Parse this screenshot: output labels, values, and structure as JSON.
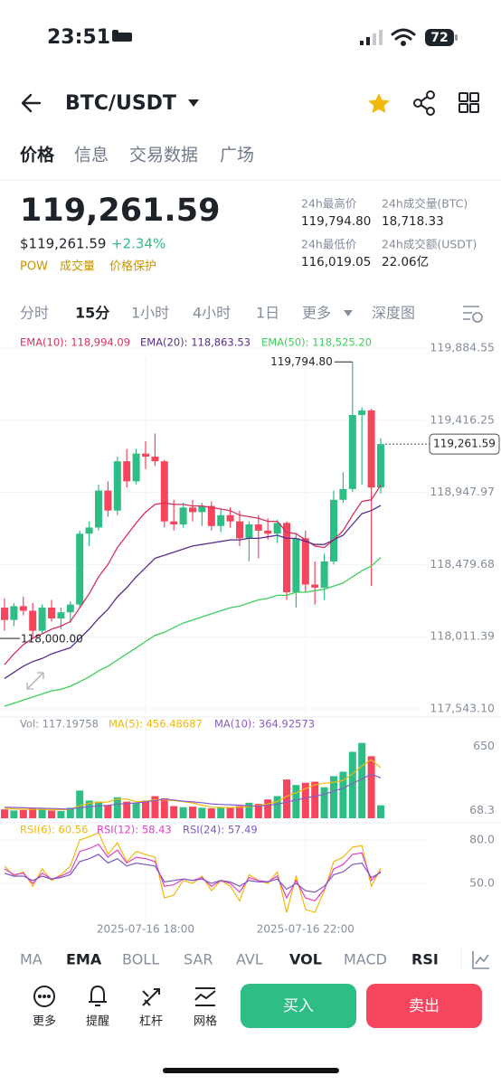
{
  "status_bar": {
    "time": "23:51",
    "battery": "72"
  },
  "header": {
    "pair": "BTC/USDT"
  },
  "tabs": [
    "价格",
    "信息",
    "交易数据",
    "广场"
  ],
  "ticker": {
    "last": "119,261.59",
    "usd": "$119,261.59",
    "change": "+2.34%",
    "tags": [
      "POW",
      "成交量",
      "价格保护"
    ],
    "stats": [
      {
        "label": "24h最高价",
        "value": "119,794.80"
      },
      {
        "label": "24h成交量(BTC)",
        "value": "18,718.33"
      },
      {
        "label": "24h最低价",
        "value": "116,019.05"
      },
      {
        "label": "24h成交额(USDT)",
        "value": "22.06亿"
      }
    ]
  },
  "intervals": [
    "分时",
    "15分",
    "1小时",
    "4小时",
    "1日",
    "更多",
    "深度图"
  ],
  "chart_data": [
    {
      "type": "candlestick",
      "categories": [
        null,
        null,
        null,
        null,
        null,
        null,
        null,
        null,
        null,
        null,
        null,
        null,
        null,
        null,
        null,
        "2025-07-16 18:00",
        null,
        null,
        null,
        null,
        null,
        null,
        null,
        null,
        null,
        null,
        null,
        null,
        null,
        null,
        null,
        null,
        "2025-07-16 22:00",
        null,
        null,
        null,
        null,
        null,
        null,
        null,
        null
      ],
      "open": [
        118200,
        118120,
        118210,
        118180,
        118050,
        118200,
        118130,
        118170,
        118220,
        118680,
        118720,
        118960,
        118830,
        119150,
        119020,
        119200,
        119180,
        119150,
        118760,
        118740,
        118850,
        118820,
        118860,
        118730,
        118800,
        118760,
        118650,
        118740,
        118700,
        118680,
        118750,
        118300,
        118650,
        118350,
        118330,
        118500,
        118900,
        118970,
        119450,
        119480,
        118980
      ],
      "high": [
        118260,
        118230,
        118270,
        118230,
        118220,
        118250,
        118200,
        118240,
        118700,
        118760,
        119000,
        119020,
        119180,
        119230,
        119230,
        119280,
        119330,
        119160,
        118900,
        118880,
        118900,
        118880,
        118890,
        118840,
        118850,
        118830,
        118760,
        118800,
        118780,
        118770,
        118760,
        118680,
        118700,
        118500,
        118550,
        118960,
        119080,
        119794.8,
        119500,
        119490,
        119300
      ],
      "low": [
        118050,
        118080,
        118150,
        118000.0,
        118030,
        118110,
        118060,
        118100,
        118200,
        118600,
        118700,
        118790,
        118800,
        118980,
        119000,
        119100,
        119120,
        118720,
        118700,
        118720,
        118760,
        118730,
        118700,
        118690,
        118720,
        118600,
        118500,
        118520,
        118640,
        118620,
        118250,
        118200,
        118300,
        118220,
        118250,
        118480,
        118880,
        118950,
        119000,
        118340,
        118940
      ],
      "close": [
        118120,
        118210,
        118180,
        118050,
        118200,
        118130,
        118170,
        118220,
        118680,
        118720,
        118960,
        118830,
        119150,
        119020,
        119200,
        119180,
        119150,
        118760,
        118740,
        118850,
        118820,
        118860,
        118730,
        118800,
        118760,
        118650,
        118740,
        118700,
        118680,
        118750,
        118300,
        118650,
        118350,
        118330,
        118500,
        118900,
        118970,
        119450,
        119480,
        118980,
        119261.59
      ],
      "up_color": "#2ebd85",
      "down_color": "#f6465d",
      "ylim": [
        117543.1,
        119884.55
      ],
      "yticks": [
        {
          "value": 119884.55,
          "label": "119,884.55"
        },
        {
          "value": 119416.25,
          "label": "119,416.25"
        },
        {
          "value": 118947.97,
          "label": "118,947.97"
        },
        {
          "value": 118479.68,
          "label": "118,479.68"
        },
        {
          "value": 118011.39,
          "label": "118,011.39"
        },
        {
          "value": 117543.1,
          "label": "117,543.10"
        }
      ],
      "grid": true,
      "last_price": {
        "value": 119261.59,
        "label": "119,261.59"
      },
      "annotations": [
        {
          "value": 119794.8,
          "label": "119,794.80"
        },
        {
          "value": 118000.0,
          "label": "118,000.00"
        }
      ],
      "series": [
        {
          "name": "EMA(10): 118,994.09",
          "color": "#d9305c",
          "values": [
            117830,
            117900,
            117960,
            118000,
            118030,
            118060,
            118080,
            118110,
            118200,
            118290,
            118400,
            118480,
            118590,
            118670,
            118750,
            118820,
            118870,
            118880,
            118870,
            118870,
            118860,
            118860,
            118850,
            118840,
            118830,
            118800,
            118790,
            118780,
            118760,
            118760,
            118690,
            118680,
            118640,
            118600,
            118590,
            118640,
            118700,
            118800,
            118890,
            118900,
            118994.09
          ]
        },
        {
          "name": "EMA(20): 118,863.53",
          "color": "#5a2d8c",
          "values": [
            117740,
            117780,
            117820,
            117850,
            117870,
            117900,
            117920,
            117940,
            118000,
            118060,
            118130,
            118190,
            118270,
            118330,
            118400,
            118460,
            118520,
            118540,
            118560,
            118580,
            118600,
            118610,
            118620,
            118630,
            118640,
            118640,
            118650,
            118650,
            118660,
            118670,
            118650,
            118650,
            118630,
            118610,
            118610,
            118640,
            118670,
            118740,
            118810,
            118830,
            118863.53
          ]
        },
        {
          "name": "EMA(50): 118,525.20",
          "color": "#3ccf5a",
          "values": [
            117560,
            117580,
            117600,
            117620,
            117640,
            117660,
            117670,
            117690,
            117720,
            117750,
            117790,
            117820,
            117860,
            117900,
            117940,
            117980,
            118020,
            118040,
            118070,
            118100,
            118120,
            118140,
            118160,
            118180,
            118200,
            118210,
            118230,
            118250,
            118260,
            118280,
            118280,
            118300,
            118300,
            118310,
            118320,
            118340,
            118360,
            118400,
            118440,
            118470,
            118525.2
          ]
        }
      ]
    },
    {
      "type": "bar",
      "legend": "Vol: 117.19758",
      "values": [
        80,
        70,
        75,
        90,
        85,
        70,
        65,
        95,
        250,
        160,
        150,
        120,
        190,
        150,
        140,
        160,
        200,
        180,
        110,
        100,
        105,
        95,
        90,
        100,
        95,
        110,
        140,
        130,
        170,
        200,
        350,
        300,
        320,
        330,
        280,
        380,
        420,
        600,
        680,
        560,
        117.19758
      ],
      "ylim": [
        0,
        710
      ],
      "yticks": [
        650,
        68.3
      ],
      "series": [
        {
          "name": "MA(5): 456.48687",
          "color": "#f0b90b",
          "values": [
            90,
            85,
            82,
            80,
            80,
            78,
            77,
            81,
            113,
            135,
            144,
            147,
            174,
            174,
            150,
            152,
            168,
            166,
            160,
            150,
            139,
            118,
            100,
            98,
            96,
            98,
            106,
            115,
            129,
            150,
            198,
            230,
            268,
            300,
            316,
            326,
            340,
            402,
            472,
            528,
            456.48687
          ]
        },
        {
          "name": "MA(10): 364.92573",
          "color": "#8a5cc9",
          "values": [
            100,
            98,
            95,
            92,
            90,
            88,
            85,
            83,
            98,
            104,
            111,
            116,
            128,
            133,
            139,
            147,
            161,
            175,
            165,
            154,
            148,
            140,
            130,
            125,
            122,
            118,
            112,
            110,
            118,
            125,
            148,
            164,
            183,
            199,
            217,
            244,
            272,
            314,
            355,
            398,
            364.92573
          ]
        }
      ]
    },
    {
      "type": "line",
      "ylim": [
        22,
        88
      ],
      "yticks": [
        {
          "value": 80,
          "label": "80.0"
        },
        {
          "value": 50,
          "label": "50.0"
        }
      ],
      "series": [
        {
          "name": "RSI(6): 60.56",
          "color": "#f0b90b",
          "values": [
            62,
            55,
            58,
            48,
            60,
            52,
            56,
            62,
            80,
            82,
            85,
            70,
            78,
            65,
            72,
            70,
            68,
            40,
            42,
            52,
            50,
            55,
            45,
            52,
            48,
            38,
            56,
            52,
            50,
            58,
            30,
            55,
            32,
            30,
            45,
            65,
            68,
            75,
            76,
            48,
            60.56
          ]
        },
        {
          "name": "RSI(12): 58.43",
          "color": "#e040c8",
          "values": [
            60,
            56,
            57,
            50,
            57,
            53,
            55,
            58,
            72,
            74,
            77,
            68,
            73,
            64,
            68,
            67,
            65,
            48,
            49,
            53,
            52,
            54,
            48,
            52,
            50,
            44,
            54,
            52,
            51,
            55,
            40,
            52,
            40,
            38,
            46,
            60,
            63,
            70,
            71,
            52,
            58.43
          ]
        },
        {
          "name": "RSI(24): 57.49",
          "color": "#7e57c2",
          "values": [
            57,
            55,
            55,
            52,
            55,
            53,
            54,
            56,
            65,
            67,
            70,
            64,
            67,
            62,
            64,
            63,
            62,
            51,
            52,
            53,
            52,
            53,
            50,
            52,
            51,
            48,
            52,
            51,
            51,
            53,
            46,
            50,
            45,
            44,
            48,
            56,
            58,
            63,
            64,
            54,
            57.49
          ]
        }
      ]
    }
  ],
  "indicator_tabs": [
    "MA",
    "EMA",
    "BOLL",
    "SAR",
    "AVL",
    "VOL",
    "MACD",
    "RSI"
  ],
  "actions": [
    "更多",
    "提醒",
    "杠杆",
    "网格"
  ],
  "buy": "买入",
  "sell": "卖出"
}
